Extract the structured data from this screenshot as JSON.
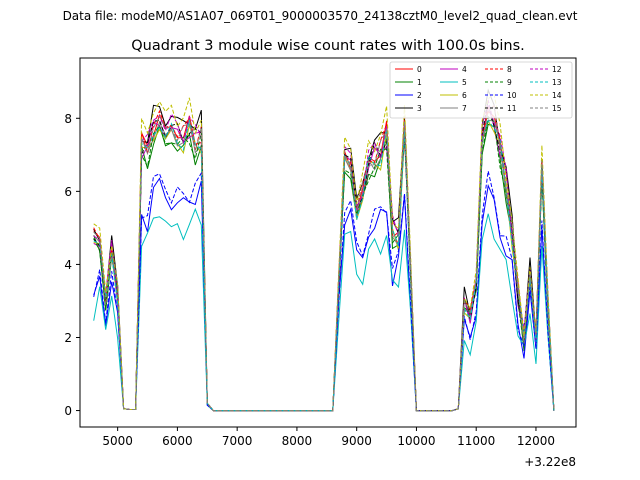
{
  "chart_data": {
    "type": "line",
    "suptitle": "Data file: modeM0/AS1A07_069T01_9000003570_24138cztM0_level2_quad_clean.evt",
    "title": "Quadrant 3 module wise count rates with 100.0s bins.",
    "xlabel": "",
    "ylabel": "",
    "x_offset_label": "+3.22e8",
    "xlim": [
      4370,
      12670
    ],
    "ylim": [
      -0.45,
      9.65
    ],
    "xticks": [
      5000,
      6000,
      7000,
      8000,
      9000,
      10000,
      11000,
      12000
    ],
    "yticks": [
      0,
      2,
      4,
      6,
      8
    ],
    "grid": false,
    "legend_position": "upper-right",
    "legend_columns": 4,
    "x": [
      4600,
      4700,
      4800,
      4900,
      5000,
      5100,
      5200,
      5300,
      5400,
      5500,
      5600,
      5700,
      5800,
      5900,
      6000,
      6100,
      6200,
      6300,
      6400,
      6500,
      6600,
      6700,
      6800,
      6900,
      7000,
      7100,
      7200,
      7300,
      7400,
      7500,
      7600,
      7700,
      7800,
      7900,
      8000,
      8100,
      8200,
      8300,
      8400,
      8500,
      8600,
      8700,
      8800,
      8900,
      9000,
      9100,
      9200,
      9300,
      9400,
      9500,
      9600,
      9700,
      9800,
      9900,
      10000,
      10100,
      10200,
      10300,
      10400,
      10500,
      10600,
      10700,
      10800,
      10900,
      11000,
      11100,
      11200,
      11300,
      11400,
      11500,
      11600,
      11700,
      11800,
      11900,
      12000,
      12100,
      12200,
      12300
    ],
    "series": [
      {
        "name": "0",
        "color": "#ff0000",
        "dash": "solid",
        "profile": "A",
        "scale": 1.0,
        "phase": 0.0
      },
      {
        "name": "1",
        "color": "#008000",
        "dash": "solid",
        "profile": "A",
        "scale": 0.95,
        "phase": 1.0
      },
      {
        "name": "2",
        "color": "#0000ff",
        "dash": "solid",
        "profile": "B",
        "scale": 1.0,
        "phase": 2.0
      },
      {
        "name": "3",
        "color": "#000000",
        "dash": "solid",
        "profile": "A",
        "scale": 1.04,
        "phase": 3.0
      },
      {
        "name": "4",
        "color": "#bf00bf",
        "dash": "solid",
        "profile": "A",
        "scale": 0.99,
        "phase": 4.0
      },
      {
        "name": "5",
        "color": "#00bfbf",
        "dash": "solid",
        "profile": "B",
        "scale": 0.88,
        "phase": 5.0
      },
      {
        "name": "6",
        "color": "#bfbf00",
        "dash": "solid",
        "profile": "A",
        "scale": 0.97,
        "phase": 6.0
      },
      {
        "name": "7",
        "color": "#808080",
        "dash": "solid",
        "profile": "A",
        "scale": 0.98,
        "phase": 7.0
      },
      {
        "name": "8",
        "color": "#ff0000",
        "dash": "dashed",
        "profile": "A",
        "scale": 1.01,
        "phase": 8.0
      },
      {
        "name": "9",
        "color": "#008000",
        "dash": "dashed",
        "profile": "A",
        "scale": 0.96,
        "phase": 9.0
      },
      {
        "name": "10",
        "color": "#0000ff",
        "dash": "dashed",
        "profile": "B",
        "scale": 1.04,
        "phase": 10.0
      },
      {
        "name": "11",
        "color": "#000000",
        "dash": "dashed",
        "profile": "A",
        "scale": 1.0,
        "phase": 11.0
      },
      {
        "name": "12",
        "color": "#bf00bf",
        "dash": "dashed",
        "profile": "A",
        "scale": 1.02,
        "phase": 12.0
      },
      {
        "name": "13",
        "color": "#00bfbf",
        "dash": "dashed",
        "profile": "A",
        "scale": 0.98,
        "phase": 13.0
      },
      {
        "name": "14",
        "color": "#bfbf00",
        "dash": "dashed",
        "profile": "A",
        "scale": 1.06,
        "phase": 14.0
      },
      {
        "name": "15",
        "color": "#808080",
        "dash": "dashed",
        "profile": "A",
        "scale": 1.0,
        "phase": 15.0
      }
    ],
    "profiles": {
      "A": [
        4.8,
        4.6,
        3.0,
        4.5,
        3.2,
        0.05,
        0.03,
        0.03,
        7.3,
        7.2,
        7.8,
        8.0,
        7.6,
        7.8,
        7.6,
        7.5,
        7.8,
        7.4,
        7.6,
        0.2,
        0.0,
        0.0,
        0.0,
        0.0,
        0.0,
        0.0,
        0.0,
        0.0,
        0.0,
        0.0,
        0.0,
        0.0,
        0.0,
        0.0,
        0.0,
        0.0,
        0.0,
        0.0,
        0.0,
        0.0,
        0.0,
        3.5,
        7.0,
        6.8,
        5.5,
        6.0,
        6.8,
        7.0,
        7.1,
        7.6,
        5.0,
        4.8,
        7.8,
        4.0,
        0.0,
        0.0,
        0.0,
        0.0,
        0.0,
        0.0,
        0.0,
        0.05,
        3.0,
        2.6,
        3.5,
        7.5,
        8.3,
        8.0,
        7.2,
        6.3,
        4.9,
        3.2,
        2.0,
        3.8,
        2.0,
        6.7,
        3.0,
        0.0
      ],
      "B": [
        3.0,
        3.8,
        2.4,
        3.5,
        2.5,
        0.05,
        0.03,
        0.03,
        5.3,
        5.2,
        6.0,
        6.2,
        5.9,
        5.6,
        5.7,
        5.6,
        5.8,
        5.9,
        6.0,
        0.15,
        0.0,
        0.0,
        0.0,
        0.0,
        0.0,
        0.0,
        0.0,
        0.0,
        0.0,
        0.0,
        0.0,
        0.0,
        0.0,
        0.0,
        0.0,
        0.0,
        0.0,
        0.0,
        0.0,
        0.0,
        0.0,
        3.0,
        5.3,
        5.5,
        4.3,
        4.1,
        4.9,
        5.1,
        5.2,
        5.5,
        3.7,
        4.0,
        5.8,
        3.0,
        0.0,
        0.0,
        0.0,
        0.0,
        0.0,
        0.0,
        0.0,
        0.05,
        2.3,
        1.9,
        2.7,
        5.2,
        6.1,
        5.6,
        4.9,
        4.4,
        3.8,
        2.4,
        1.7,
        3.1,
        1.6,
        5.1,
        2.2,
        0.0
      ]
    }
  }
}
